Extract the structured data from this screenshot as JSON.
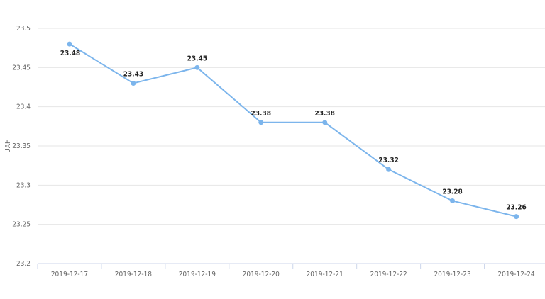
{
  "chart_data": {
    "type": "line",
    "categories": [
      "2019-12-17",
      "2019-12-18",
      "2019-12-19",
      "2019-12-20",
      "2019-12-21",
      "2019-12-22",
      "2019-12-23",
      "2019-12-24"
    ],
    "series": [
      {
        "values": [
          23.48,
          23.43,
          23.45,
          23.38,
          23.38,
          23.32,
          23.28,
          23.26
        ],
        "color": "#7cb5ec"
      }
    ],
    "data_labels": [
      "23.48",
      "23.43",
      "23.45",
      "23.38",
      "23.38",
      "23.32",
      "23.28",
      "23.26"
    ],
    "ylabel": "UAH",
    "ylim": [
      23.2,
      23.5
    ],
    "yticks": [
      "23.2",
      "23.25",
      "23.3",
      "23.35",
      "23.4",
      "23.45",
      "23.5"
    ],
    "grid": true
  }
}
